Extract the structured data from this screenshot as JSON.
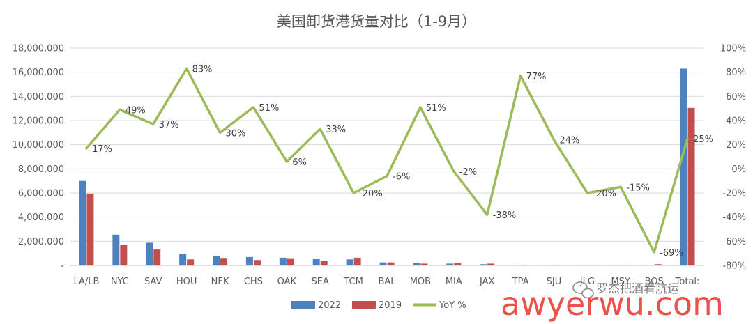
{
  "chart_data": {
    "type": "bar+line",
    "title": "美国卸货港货量对比（1-9月）",
    "categories": [
      "LA/LB",
      "NYC",
      "SAV",
      "HOU",
      "NFK",
      "CHS",
      "OAK",
      "SEA",
      "TCM",
      "BAL",
      "MOB",
      "MIA",
      "JAX",
      "TPA",
      "SJU",
      "JLG",
      "MSY",
      "BOS",
      "Total:"
    ],
    "series": [
      {
        "name": "2022",
        "type": "bar",
        "axis": "left",
        "color": "#4f81bd",
        "values": [
          7000000,
          2550000,
          1880000,
          950000,
          790000,
          700000,
          640000,
          560000,
          500000,
          250000,
          200000,
          150000,
          100000,
          40000,
          30000,
          20000,
          20000,
          30000,
          16300000
        ]
      },
      {
        "name": "2019",
        "type": "bar",
        "axis": "left",
        "color": "#c0504d",
        "values": [
          5950000,
          1700000,
          1320000,
          500000,
          620000,
          450000,
          600000,
          400000,
          640000,
          250000,
          150000,
          190000,
          150000,
          20000,
          20000,
          20000,
          20000,
          100000,
          13050000
        ]
      },
      {
        "name": "YoY %",
        "type": "line",
        "axis": "right",
        "color": "#9bbb59",
        "values": [
          17,
          49,
          37,
          83,
          30,
          51,
          6,
          33,
          -20,
          -6,
          51,
          -2,
          -38,
          77,
          24,
          -20,
          -15,
          -69,
          25
        ]
      }
    ],
    "yoy_labels": [
      "17%",
      "49%",
      "37%",
      "83%",
      "30%",
      "51%",
      "6%",
      "33%",
      "-20%",
      "-6%",
      "51%",
      "-2%",
      "-38%",
      "77%",
      "24%",
      "-20%",
      "-15%",
      "-69%",
      "25%"
    ],
    "y_left": {
      "min": 0,
      "max": 18000000,
      "step": 2000000,
      "tick_labels": [
        "-",
        "2,000,000",
        "4,000,000",
        "6,000,000",
        "8,000,000",
        "10,000,000",
        "12,000,000",
        "14,000,000",
        "16,000,000",
        "18,000,000"
      ]
    },
    "y_right": {
      "min": -80,
      "max": 100,
      "step": 20,
      "tick_labels": [
        "-80%",
        "-60%",
        "-40%",
        "-20%",
        "0%",
        "20%",
        "40%",
        "60%",
        "80%",
        "100%"
      ]
    },
    "legend": {
      "placement": "bottom",
      "items": [
        "2022",
        "2019",
        "YoY %"
      ]
    }
  },
  "watermark": {
    "account": "罗杰把酒看航运",
    "site": "awyerwu.com"
  }
}
